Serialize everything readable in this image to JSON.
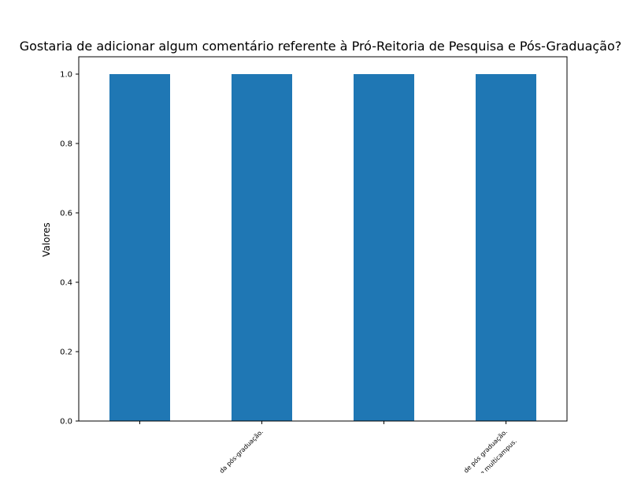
{
  "chart_data": {
    "type": "bar",
    "title": "Gostaria de adicionar algum comentário referente à Pró-Reitoria de Pesquisa e Pós-Graduação?",
    "xlabel": "",
    "ylabel": "Valores",
    "categories": [
      "",
      "da pós-graduação.",
      "",
      "de pós graduação.\ndade multicampus."
    ],
    "values": [
      1,
      1,
      1,
      1
    ],
    "ylim": [
      0,
      1.05
    ],
    "yticks": [
      0.0,
      0.2,
      0.4,
      0.6,
      0.8,
      1.0
    ],
    "ytick_labels": [
      "0.0",
      "0.2",
      "0.4",
      "0.6",
      "0.8",
      "1.0"
    ],
    "bar_color": "#1f77b4",
    "grid": false,
    "legend": "none"
  }
}
